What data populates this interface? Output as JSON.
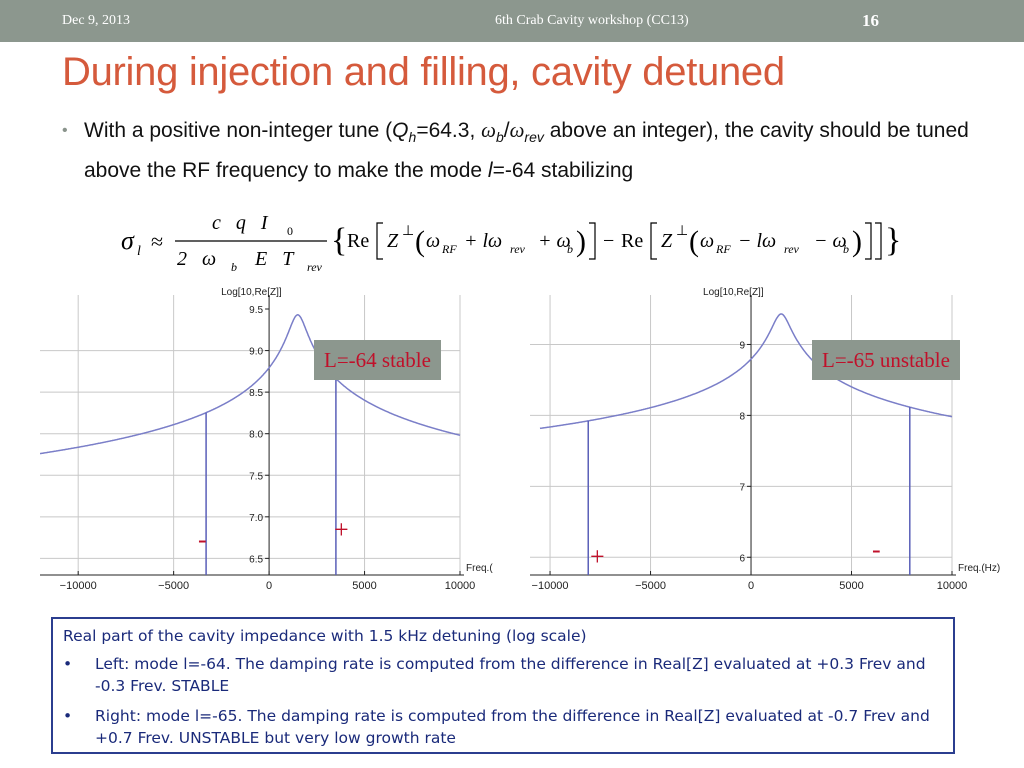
{
  "header": {
    "date": "Dec 9, 2013",
    "workshop": "6th Crab Cavity workshop (CC13)",
    "page_number": "16"
  },
  "title": "During injection and filling, cavity detuned",
  "bullet": {
    "t1": "With a positive non-integer tune (",
    "q": "Q",
    "q_sub": "h",
    "t2": "=64.3, ",
    "w1": "ω",
    "w1_sub": "b",
    "slash": "/",
    "w2": "ω",
    "w2_sub": "rev",
    "t3": " above an integer), the cavity should be tuned above the RF frequency to make the mode ",
    "l": "l",
    "t4": "=-64 stabilizing"
  },
  "formula": {
    "sigma": "σ",
    "l": "l",
    "approx": "≈",
    "num": "c   q   I",
    "num_sub": "0",
    "den": "2   ω",
    "den_sub1": "b",
    "den_mid": "E   T",
    "den_sub2": "rev",
    "brace_open": "{",
    "re1": "Re",
    "z1": "Z",
    "perp1": "⊥",
    "term1a": "ω",
    "term1a_sub": "RF",
    "term1b": " + lω",
    "term1b_sub": "rev",
    "term1c": " + ω",
    "term1c_sub": "b",
    "minus": "−",
    "re2": "Re",
    "z2": "Z",
    "perp2": "⊥",
    "term2a": "ω",
    "term2a_sub": "RF",
    "term2b": " − lω",
    "term2b_sub": "rev",
    "term2c": " − ω",
    "term2c_sub": "b",
    "brace_close": "}"
  },
  "plots": [
    {
      "ylabel": "Log[10,Re[Z]]",
      "xlabel": "Freq.(",
      "x_ticks": [
        "−10000",
        "−5000",
        "0",
        "5000",
        "10000"
      ],
      "y_ticks": [
        "6.5",
        "7.0",
        "7.5",
        "8.0",
        "8.5",
        "9.0",
        "9.5"
      ],
      "tag": "L=-64 stable",
      "minus_mark": "-",
      "plus_mark": "+"
    },
    {
      "ylabel": "Log[10,Re[Z]]",
      "xlabel": "Freq.(Hz)",
      "x_ticks": [
        "−10000",
        "−5000",
        "0",
        "5000",
        "10000"
      ],
      "y_ticks": [
        "6",
        "7",
        "8",
        "9"
      ],
      "tag": "L=-65 unstable",
      "minus_mark": "-",
      "plus_mark": "+"
    }
  ],
  "caption": {
    "intro": "Real part of the cavity impedance with 1.5 kHz detuning (log scale)",
    "items": [
      {
        "bullet": "•",
        "text": "Left: mode l=-64. The damping rate is computed from the difference in Real[Z] evaluated at +0.3 Frev and -0.3 Frev. STABLE"
      },
      {
        "bullet": "•",
        "text": "Right: mode l=-65. The damping rate is computed from the difference in Real[Z] evaluated at -0.7 Frev and +0.7 Frev. UNSTABLE but very low growth rate"
      }
    ]
  },
  "colors": {
    "bar": "#8c978e",
    "title": "#d55a3c",
    "curve": "#7a7ec8",
    "mark": "#c0102a",
    "caption_border": "#2b3e8f"
  }
}
